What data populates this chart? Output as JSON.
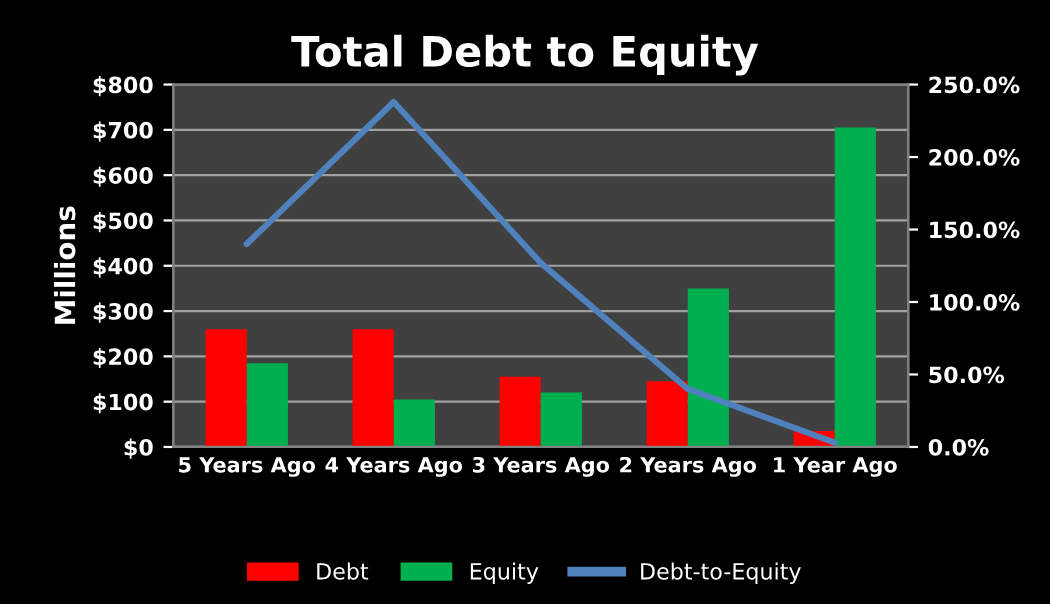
{
  "chart_data": {
    "type": "bar",
    "title": "Total Debt to Equity",
    "ylabel": "Millions",
    "categories": [
      "5 Years Ago",
      "4 Years Ago",
      "3 Years Ago",
      "2 Years Ago",
      "1 Year Ago"
    ],
    "series": [
      {
        "name": "Debt",
        "color": "#ff0000",
        "values": [
          260,
          260,
          155,
          145,
          35
        ]
      },
      {
        "name": "Equity",
        "color": "#00b050",
        "values": [
          185,
          105,
          120,
          350,
          705
        ]
      },
      {
        "name": "Debt-to-Equity",
        "type": "line",
        "axis": "y2",
        "color": "#4f81bd",
        "values": [
          140,
          238,
          127,
          40,
          3
        ]
      }
    ],
    "ylim": [
      0,
      800
    ],
    "yticks": [
      {
        "value": 0,
        "label": "$0"
      },
      {
        "value": 100,
        "label": "$100"
      },
      {
        "value": 200,
        "label": "$200"
      },
      {
        "value": 300,
        "label": "$300"
      },
      {
        "value": 400,
        "label": "$400"
      },
      {
        "value": 500,
        "label": "$500"
      },
      {
        "value": 600,
        "label": "$600"
      },
      {
        "value": 700,
        "label": "$700"
      },
      {
        "value": 800,
        "label": "$800"
      }
    ],
    "y2lim": [
      0,
      250
    ],
    "y2ticks": [
      {
        "value": 0,
        "label": "0.0%"
      },
      {
        "value": 50,
        "label": "50.0%"
      },
      {
        "value": 100,
        "label": "100.0%"
      },
      {
        "value": 150,
        "label": "150.0%"
      },
      {
        "value": 200,
        "label": "200.0%"
      },
      {
        "value": 250,
        "label": "250.0%"
      }
    ],
    "grid": "y",
    "legend": "bottom",
    "marker": "none",
    "line_style": "solid"
  }
}
